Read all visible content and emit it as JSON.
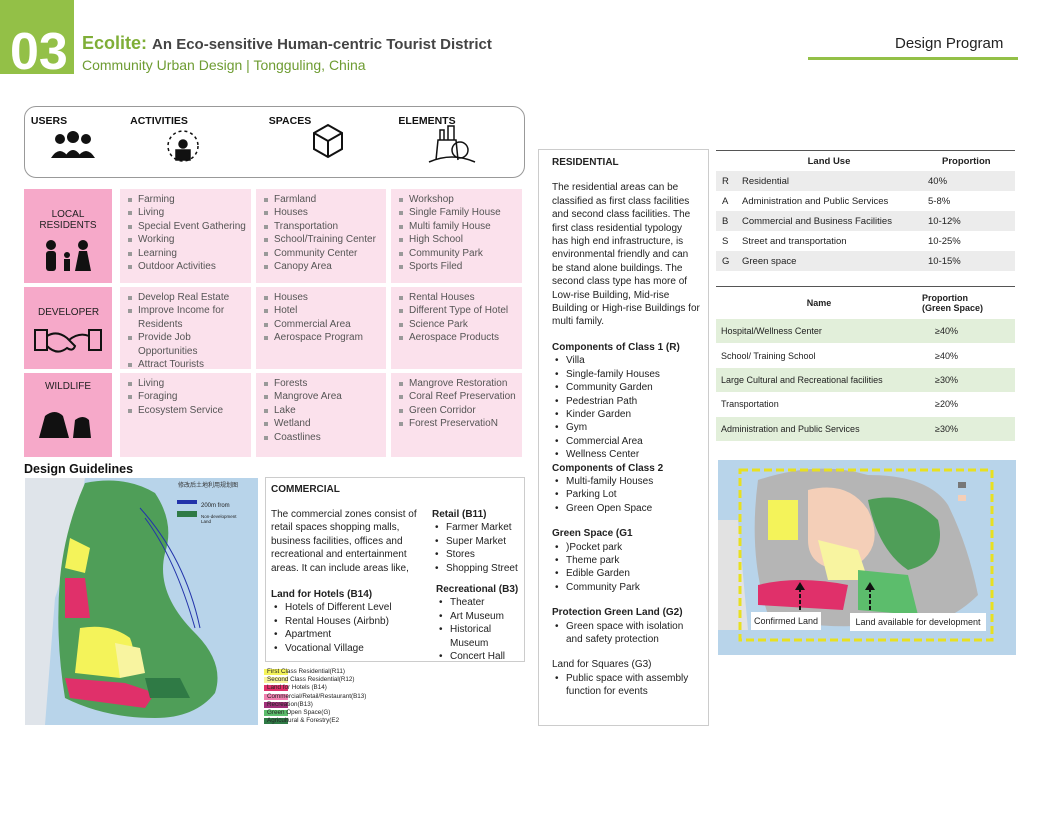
{
  "header": {
    "number": "03",
    "title_lead": "Ecolite:",
    "title_rest": "An Eco-sensitive Human-centric Tourist District",
    "subtitle": "Community Urban Design | Tongguling, China",
    "section": "Design Program"
  },
  "categories": [
    "USERS",
    "ACTIVITIES",
    "SPACES",
    "ELEMENTS"
  ],
  "matrix": [
    {
      "label": "LOCAL RESIDENTS",
      "activities": [
        "Farming",
        "Living",
        "Special Event Gathering",
        "Working",
        "Learning",
        "Outdoor Activities"
      ],
      "spaces": [
        "Farmland",
        "Houses",
        "Transportation",
        "School/Training Center",
        "Community Center",
        "Canopy Area"
      ],
      "elements": [
        "Workshop",
        "Single Family House",
        "Multi family House",
        "High School",
        "Community Park",
        "Sports Filed"
      ]
    },
    {
      "label": "DEVELOPER",
      "activities": [
        "Develop Real Estate",
        "Improve Income for Residents",
        "Provide Job Opportunities",
        "Attract Tourists"
      ],
      "spaces": [
        "Houses",
        "Hotel",
        "Commercial Area",
        "Aerospace Program"
      ],
      "elements": [
        "Rental Houses",
        "Different Type of Hotel",
        "Science Park",
        "Aerospace Products"
      ]
    },
    {
      "label": "WILDLIFE",
      "activities": [
        "Living",
        "Foraging",
        "Ecosystem Service"
      ],
      "spaces": [
        "Forests",
        "Mangrove Area",
        "Lake",
        "Wetland",
        "Coastlines"
      ],
      "elements": [
        "Mangrove Restoration",
        "Coral Reef Preservation",
        "Green Corridor",
        "Forest PreservatioN"
      ]
    }
  ],
  "guidelines": {
    "title": "Design Guidelines"
  },
  "commercial": {
    "title": "COMMERCIAL",
    "intro": "The commercial zones consist of retail spaces shopping malls, business facilities, offices and recreational and entertainment areas. It can include areas like,",
    "groups": [
      {
        "heading": "Land for Hotels (B14)",
        "items": [
          "Hotels of Different Level",
          "Rental Houses (Airbnb)",
          "Apartment",
          "Vocational Village"
        ]
      },
      {
        "heading": "Retail (B11)",
        "items": [
          "Farmer Market",
          "Super Market",
          "Stores",
          "Shopping Street"
        ]
      },
      {
        "heading": "Recreational (B3)",
        "items": [
          "Theater",
          "Art Museum",
          "Historical Museum",
          "Concert Hall"
        ]
      }
    ]
  },
  "residential": {
    "title": "RESIDENTIAL",
    "intro": "The residential areas can be classified as first class facilities and second class facilities. The first class residential typology has high end infrastructure, is environmental friendly and can be stand alone buildings. The second class type has more of Low-rise Building, Mid-rise Building or High-rise Buildings for multi family.",
    "groups": [
      {
        "heading": "Components of Class 1 (R)",
        "items": [
          "Villa",
          "Single-family Houses",
          "Community Garden",
          "Pedestrian Path",
          "Kinder Garden",
          "Gym",
          "Commercial Area",
          "Wellness Center"
        ]
      },
      {
        "heading": "Components of Class 2",
        "items": [
          "Multi-family Houses",
          "Parking Lot",
          "Green Open Space"
        ]
      },
      {
        "heading": "Green Space (G1",
        "items": [
          ")Pocket park",
          "Theme park",
          "Edible Garden",
          "Community Park"
        ]
      },
      {
        "heading": "Protection Green Land (G2)",
        "items": [
          "Green space with isolation and safety protection"
        ]
      },
      {
        "heading": "Land for Squares (G3)",
        "items": [
          "Public space with assembly function for events"
        ]
      }
    ]
  },
  "land_use": {
    "columns": [
      "Land Use",
      "Proportion"
    ],
    "rows": [
      [
        "R",
        "Residential",
        "40%"
      ],
      [
        "A",
        "Administration and Public Services",
        "5-8%"
      ],
      [
        "B",
        "Commercial and Business Facilities",
        "10-12%"
      ],
      [
        "S",
        "Street and transportation",
        "10-25%"
      ],
      [
        "G",
        "Green space",
        "10-15%"
      ]
    ]
  },
  "green_space": {
    "columns": [
      "Name",
      "Proportion (Green Space)"
    ],
    "rows": [
      [
        "Hospital/Wellness Center",
        "≥40%"
      ],
      [
        "School/ Training School",
        "≥40%"
      ],
      [
        "Large Cultural and Recreational facilities",
        "≥30%"
      ],
      [
        "Transportation",
        "≥20%"
      ],
      [
        "Administration and Public Services",
        "≥30%"
      ]
    ]
  },
  "map1": {
    "caption": "修改后土地利用规划图",
    "notes": [
      "200m from",
      "Non-development Land"
    ],
    "legend": [
      {
        "name": "First Class Residential(R11)",
        "color": "#f4f35a"
      },
      {
        "name": "Second Class Residential(R12)",
        "color": "#f8f4a0"
      },
      {
        "name": "Land for Hotels (B14)",
        "color": "#e0306a"
      },
      {
        "name": "Commercial/Retail/Restaurant(B13)",
        "color": "#f080b0"
      },
      {
        "name": "Recreation(B13)",
        "color": "#a0307a"
      },
      {
        "name": "Green Open Space(G)",
        "color": "#5cbd6c"
      },
      {
        "name": "Agricultural & Forestry(E2",
        "color": "#2f7a45"
      }
    ]
  },
  "map2": {
    "labels": [
      "Confirmed Land",
      "Land available for development"
    ]
  }
}
